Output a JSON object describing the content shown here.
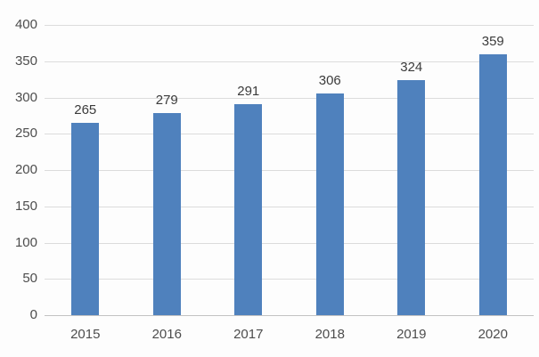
{
  "chart_data": {
    "type": "bar",
    "title": "",
    "xlabel": "",
    "ylabel": "",
    "categories": [
      "2015",
      "2016",
      "2017",
      "2018",
      "2019",
      "2020"
    ],
    "values": [
      265,
      279,
      291,
      306,
      324,
      359
    ],
    "data_labels": [
      "265",
      "279",
      "291",
      "306",
      "324",
      "359"
    ],
    "ylim": [
      0,
      400
    ],
    "ytick_step": 50,
    "yticks": [
      "0",
      "50",
      "100",
      "150",
      "200",
      "250",
      "300",
      "350",
      "400"
    ],
    "grid": true,
    "legend": false,
    "legend_position": "none",
    "bar_color": "#4f81bd",
    "gridline_color": "#dcdcdc",
    "baseline_color": "#c3c3c3",
    "axis_text_color": "#4d4d4d",
    "data_label_color": "#3b3b3b",
    "background_color": "#fdfdfd"
  }
}
